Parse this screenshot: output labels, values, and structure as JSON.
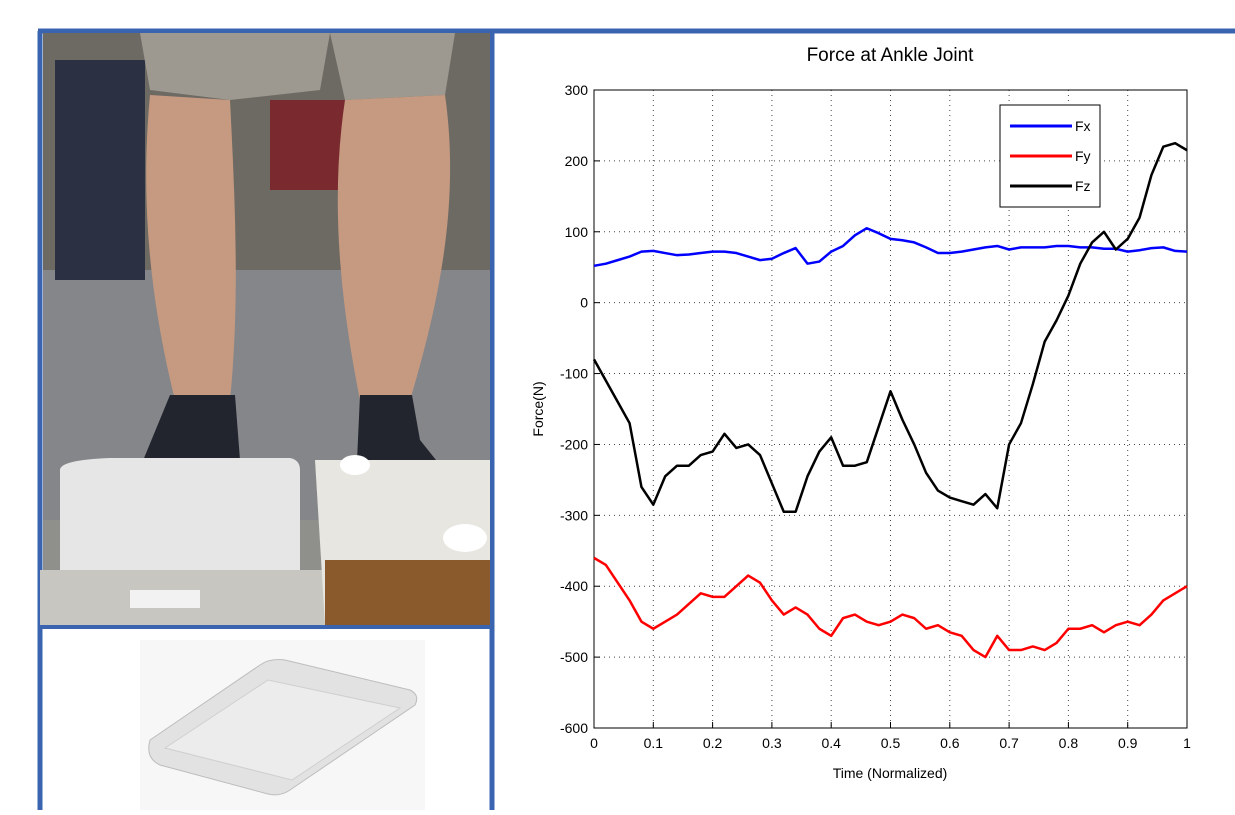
{
  "chart_data": {
    "type": "line",
    "title": "Force at Ankle Joint",
    "x_label": "Time (Normalized)",
    "y_label": "Force(N)",
    "x": [
      0,
      0.02,
      0.04,
      0.06,
      0.08,
      0.1,
      0.12,
      0.14,
      0.16,
      0.18,
      0.2,
      0.22,
      0.24,
      0.26,
      0.28,
      0.3,
      0.32,
      0.34,
      0.36,
      0.38,
      0.4,
      0.42,
      0.44,
      0.46,
      0.48,
      0.5,
      0.52,
      0.54,
      0.56,
      0.58,
      0.6,
      0.62,
      0.64,
      0.66,
      0.68,
      0.7,
      0.72,
      0.74,
      0.76,
      0.78,
      0.8,
      0.82,
      0.84,
      0.86,
      0.88,
      0.9,
      0.92,
      0.94,
      0.96,
      0.98,
      1
    ],
    "series": [
      {
        "name": "Fx",
        "color": "#0000ff",
        "values": [
          52,
          55,
          60,
          65,
          72,
          73,
          70,
          67,
          68,
          70,
          72,
          72,
          70,
          65,
          60,
          62,
          70,
          77,
          55,
          58,
          72,
          80,
          95,
          105,
          98,
          90,
          88,
          85,
          78,
          70,
          70,
          72,
          75,
          78,
          80,
          75,
          78,
          78,
          78,
          80,
          80,
          78,
          78,
          76,
          76,
          72,
          74,
          77,
          78,
          73,
          72
        ]
      },
      {
        "name": "Fy",
        "color": "#ff0000",
        "values": [
          -360,
          -370,
          -395,
          -420,
          -450,
          -460,
          -450,
          -440,
          -425,
          -410,
          -415,
          -415,
          -400,
          -385,
          -395,
          -420,
          -440,
          -430,
          -440,
          -460,
          -470,
          -445,
          -440,
          -450,
          -455,
          -450,
          -440,
          -445,
          -460,
          -455,
          -465,
          -470,
          -490,
          -500,
          -470,
          -490,
          -490,
          -485,
          -490,
          -480,
          -460,
          -460,
          -455,
          -465,
          -455,
          -450,
          -455,
          -440,
          -420,
          -410,
          -400
        ]
      },
      {
        "name": "Fz",
        "color": "#000000",
        "values": [
          -80,
          -110,
          -140,
          -170,
          -260,
          -285,
          -245,
          -230,
          -230,
          -215,
          -210,
          -185,
          -205,
          -200,
          -215,
          -255,
          -295,
          -295,
          -245,
          -210,
          -190,
          -230,
          -230,
          -225,
          -175,
          -125,
          -165,
          -200,
          -240,
          -265,
          -275,
          -280,
          -285,
          -270,
          -290,
          -200,
          -170,
          -115,
          -55,
          -25,
          10,
          55,
          85,
          100,
          75,
          90,
          120,
          180,
          220,
          225,
          215
        ]
      }
    ],
    "xlim": [
      0,
      1
    ],
    "xticks": [
      0,
      0.1,
      0.2,
      0.3,
      0.4,
      0.5,
      0.6,
      0.7,
      0.8,
      0.9,
      1
    ],
    "ylim": [
      -600,
      300
    ],
    "yticks": [
      -600,
      -500,
      -400,
      -300,
      -200,
      -100,
      0,
      100,
      200,
      300
    ],
    "grid": true,
    "legend": "top-right"
  }
}
